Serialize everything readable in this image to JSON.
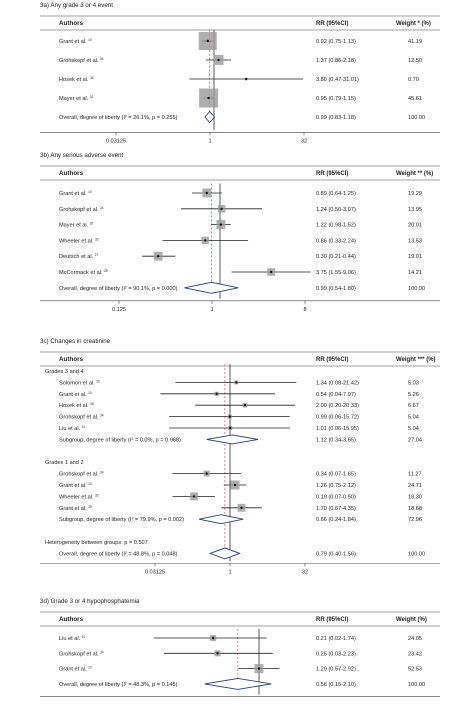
{
  "chart_data": [
    {
      "type": "forest",
      "title": "3a) Any grade 3 or 4 event",
      "headers": {
        "study": "Authors",
        "rr": "RR (95%CI)",
        "weight": "Weight * (%)"
      },
      "scale": "log2",
      "xlim": [
        0.03125,
        32
      ],
      "ticks": [
        0.03125,
        1,
        32
      ],
      "tick_labels": [
        "0.03125",
        "1",
        "32"
      ],
      "rows": [
        {
          "kind": "study",
          "label": "Grant et al.",
          "ref": "10",
          "rr": 0.92,
          "lo": 0.75,
          "hi": 1.13,
          "rr_text": "0.92 (0.75-1.13)",
          "weight": 41.19,
          "weight_text": "41.19"
        },
        {
          "kind": "study",
          "label": "Grohskopf et al.",
          "ref": "34",
          "rr": 1.37,
          "lo": 0.86,
          "hi": 2.18,
          "rr_text": "1.37 (0.86-2.18)",
          "weight": 12.5,
          "weight_text": "12.50"
        },
        {
          "kind": "study",
          "label": "Hosek et al.",
          "ref": "36",
          "rr": 3.8,
          "lo": 0.47,
          "hi": 31.01,
          "rr_text": "3.80 (0.47-31.01)",
          "weight": 0.7,
          "weight_text": "0.70"
        },
        {
          "kind": "study",
          "label": "Mayer et al.",
          "ref": "32",
          "rr": 0.95,
          "lo": 0.79,
          "hi": 1.15,
          "rr_text": "0.95 (0.79-1.15)",
          "weight": 45.61,
          "weight_text": "45.61"
        },
        {
          "kind": "overall",
          "label": "Overall, degree of liberty (I² = 26.1%, p = 0.255)",
          "rr": 0.99,
          "lo": 0.83,
          "hi": 1.18,
          "rr_text": "0.99 (0.83-1.18)",
          "weight": 100,
          "weight_text": "100.00"
        }
      ]
    },
    {
      "type": "forest",
      "title": "3b) Any serious adverse event",
      "headers": {
        "study": "Authors",
        "rr": "RR (95%CI)",
        "weight": "Weight ** (%)"
      },
      "scale": "log2",
      "xlim": [
        0.125,
        8
      ],
      "ticks": [
        0.125,
        1,
        8
      ],
      "tick_labels": [
        "0.125",
        "1",
        "8"
      ],
      "rows": [
        {
          "kind": "study",
          "label": "Grant et al.",
          "ref": "10",
          "rr": 0.89,
          "lo": 0.64,
          "hi": 1.25,
          "rr_text": "0.89 (0.64-1.25)",
          "weight": 19.29,
          "weight_text": "19.29"
        },
        {
          "kind": "study",
          "label": "Grohskopf et al.",
          "ref": "34",
          "rr": 1.24,
          "lo": 0.5,
          "hi": 3.07,
          "rr_text": "1.24 (0.50-3.07)",
          "weight": 13.95,
          "weight_text": "13.95"
        },
        {
          "kind": "study",
          "label": "Mayer et al.",
          "ref": "32",
          "rr": 1.22,
          "lo": 0.98,
          "hi": 1.52,
          "rr_text": "1.22 (0.98-1.52)",
          "weight": 20.01,
          "weight_text": "20.01"
        },
        {
          "kind": "study",
          "label": "Wheeler et al.",
          "ref": "33",
          "rr": 0.86,
          "lo": 0.33,
          "hi": 2.24,
          "rr_text": "0.86 (0.33-2.24)",
          "weight": 13.53,
          "weight_text": "13.53"
        },
        {
          "kind": "study",
          "label": "Deutsch et al.",
          "ref": "27",
          "rr": 0.3,
          "lo": 0.21,
          "hi": 0.44,
          "rr_text": "0.30 (0.21-0.44)",
          "weight": 19.01,
          "weight_text": "19.01"
        },
        {
          "kind": "study",
          "label": "McCormack et al.",
          "ref": "28",
          "rr": 3.75,
          "lo": 1.55,
          "hi": 9.06,
          "rr_text": "3.75 (1.55-9.06)",
          "weight": 14.21,
          "weight_text": "14.21"
        },
        {
          "kind": "overall",
          "label": "Overall, degree of liberty (I² = 90.1%, p = 0.000)",
          "rr": 0.99,
          "lo": 0.54,
          "hi": 1.8,
          "rr_text": "0.99 (0.54-1.80)",
          "weight": 100,
          "weight_text": "100.00"
        }
      ]
    },
    {
      "type": "forest",
      "title": "3c) Changes in creatinine",
      "headers": {
        "study": "Authors",
        "rr": "RR (95%CI)",
        "weight": "Weight *** (%)"
      },
      "scale": "log2",
      "xlim": [
        0.03125,
        32
      ],
      "ticks": [
        0.03125,
        1,
        32
      ],
      "tick_labels": [
        "0.03125",
        "1",
        "32"
      ],
      "rows": [
        {
          "kind": "group",
          "label": "Grades 3 and 4"
        },
        {
          "kind": "study",
          "label": "Solomon et al.",
          "ref": "30",
          "rr": 1.34,
          "lo": 0.08,
          "hi": 21.42,
          "rr_text": "1.34 (0.08-21.42)",
          "weight": 5.03,
          "weight_text": "5.03"
        },
        {
          "kind": "study",
          "label": "Grant et al.",
          "ref": "10",
          "rr": 0.54,
          "lo": 0.04,
          "hi": 7.97,
          "rr_text": "0.54 (0.04-7.97)",
          "weight": 5.26,
          "weight_text": "5.26"
        },
        {
          "kind": "study",
          "label": "Hosek et al.",
          "ref": "36",
          "rr": 2.0,
          "lo": 0.2,
          "hi": 20.33,
          "rr_text": "2.00 (0.20-20.33)",
          "weight": 6.67,
          "weight_text": "6.67"
        },
        {
          "kind": "study",
          "label": "Grohskopf et al.",
          "ref": "34",
          "rr": 0.99,
          "lo": 0.06,
          "hi": 15.72,
          "rr_text": "0.99 (0.06-15.72)",
          "weight": 5.04,
          "weight_text": "5.04"
        },
        {
          "kind": "study",
          "label": "Liu et al.",
          "ref": "31",
          "rr": 1.01,
          "lo": 0.06,
          "hi": 15.95,
          "rr_text": "1.01 (0.06-15.95)",
          "weight": 5.04,
          "weight_text": "5.04"
        },
        {
          "kind": "subgroup",
          "label": "Subgroup, degree of liberty (I² = 0.0%, p = 0.968)",
          "rr": 1.12,
          "lo": 0.34,
          "hi": 3.65,
          "rr_text": "1.12 (0.34-3.65)",
          "weight": 27.04,
          "weight_text": "27.04"
        },
        {
          "kind": "blank"
        },
        {
          "kind": "group",
          "label": "Grades 1 and 2"
        },
        {
          "kind": "study",
          "label": "Grohskopf et al.",
          "ref": "34",
          "rr": 0.34,
          "lo": 0.07,
          "hi": 1.65,
          "rr_text": "0.34 (0.07-1.65)",
          "weight": 11.27,
          "weight_text": "11.27"
        },
        {
          "kind": "study",
          "label": "Grant et al.",
          "ref": "10",
          "rr": 1.26,
          "lo": 0.75,
          "hi": 2.12,
          "rr_text": "1.26 (0.75-2.12)",
          "weight": 24.71,
          "weight_text": "24.71"
        },
        {
          "kind": "study",
          "label": "Wheeler et al.",
          "ref": "33",
          "rr": 0.19,
          "lo": 0.07,
          "hi": 0.5,
          "rr_text": "0.19 (0.07-0.50)",
          "weight": 18.3,
          "weight_text": "18.30"
        },
        {
          "kind": "study",
          "label": "Grant et al.",
          "ref": "29",
          "rr": 1.7,
          "lo": 0.67,
          "hi": 4.35,
          "rr_text": "1.70 (0.67-4.35)",
          "weight": 18.68,
          "weight_text": "18.68"
        },
        {
          "kind": "subgroup",
          "label": "Subgroup, degree of liberty (I² = 79.9%, p = 0.002)",
          "rr": 0.66,
          "lo": 0.24,
          "hi": 1.84,
          "rr_text": "0.66 (0.24-1.84)",
          "weight": 72.96,
          "weight_text": "72.96"
        },
        {
          "kind": "blank"
        },
        {
          "kind": "note",
          "label": "Heterogeneity between groups: p = 0.507"
        },
        {
          "kind": "overall",
          "label": "Overall, degree of liberty (I² = 48.8%, p = 0.048)",
          "rr": 0.79,
          "lo": 0.4,
          "hi": 1.56,
          "rr_text": "0.79 (0.40-1.56)",
          "weight": 100,
          "weight_text": "100.00"
        }
      ]
    },
    {
      "type": "forest",
      "title": "3d) Grade 3 or 4 hypophosphatemia",
      "headers": {
        "study": "Authors",
        "rr": "RR (95%CI)",
        "weight": "Weight (%)"
      },
      "scale": "log2",
      "xlim": [
        0.0078,
        8
      ],
      "ticks": [],
      "tick_labels": [],
      "rows": [
        {
          "kind": "study",
          "label": "Liu et al.",
          "ref": "31",
          "rr": 0.21,
          "lo": 0.02,
          "hi": 1.74,
          "rr_text": "0.21 (0.02-1.74)",
          "weight": 24.05,
          "weight_text": "24.05"
        },
        {
          "kind": "study",
          "label": "Grohskopf et al.",
          "ref": "34",
          "rr": 0.25,
          "lo": 0.03,
          "hi": 2.23,
          "rr_text": "0.25 (0.03-2.23)",
          "weight": 23.42,
          "weight_text": "23.42"
        },
        {
          "kind": "study",
          "label": "Grant et al.",
          "ref": "10",
          "rr": 1.29,
          "lo": 0.57,
          "hi": 2.92,
          "rr_text": "1.29 (0.57-2.92)",
          "weight": 52.53,
          "weight_text": "52.53"
        },
        {
          "kind": "overall",
          "label": "Overall, degree of liberty (I² = 48.3%, p = 0.145)",
          "rr": 0.56,
          "lo": 0.15,
          "hi": 2.1,
          "rr_text": "0.56 (0.15-2.10)",
          "weight": 100,
          "weight_text": "100.00"
        }
      ]
    }
  ],
  "colors": {
    "text": "#222222",
    "line": "#222222",
    "box": "#9a9a9a",
    "ref_line": "#333333",
    "pooled_line": "#b33c3c"
  }
}
